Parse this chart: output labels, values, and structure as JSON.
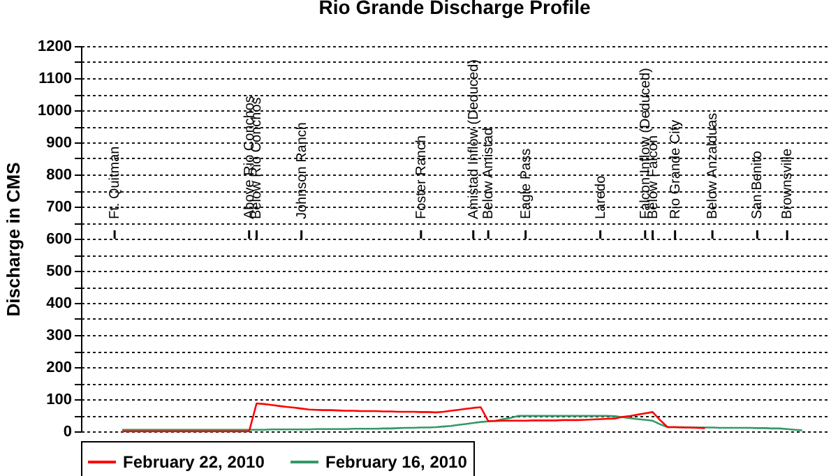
{
  "chart_data": {
    "type": "line",
    "title": "Rio Grande Discharge Profile",
    "ylabel": "Discharge in CMS",
    "categories": [
      null,
      null,
      null,
      null,
      "Ft. Quitman",
      null,
      null,
      null,
      null,
      null,
      null,
      null,
      null,
      null,
      null,
      null,
      null,
      null,
      null,
      null,
      null,
      null,
      "Above Rio Conchos",
      "Below Rio Conchos",
      null,
      null,
      null,
      null,
      null,
      "Johnson Ranch",
      null,
      null,
      null,
      null,
      null,
      null,
      null,
      null,
      null,
      null,
      null,
      null,
      null,
      null,
      null,
      "Foster Ranch",
      null,
      null,
      null,
      null,
      null,
      null,
      "Amistad Inflow (Deduced)",
      null,
      "Below Amistad",
      null,
      null,
      null,
      null,
      "Eagle Pass",
      null,
      null,
      null,
      null,
      null,
      null,
      null,
      null,
      null,
      "Laredo",
      null,
      null,
      null,
      null,
      null,
      "Falcon Inflow (Deduced)",
      "Below Falcon",
      null,
      null,
      "Rio Grande City",
      null,
      null,
      null,
      null,
      "Below Anzalduas",
      null,
      null,
      null,
      null,
      null,
      "San Benito",
      null,
      null,
      null,
      "Brownsville",
      null,
      null,
      null,
      null,
      null
    ],
    "ylim": [
      0,
      1200
    ],
    "yticks": [
      0,
      {
        "value": 50,
        "label": null
      },
      100,
      {
        "value": 150,
        "label": null
      },
      200,
      {
        "value": 250,
        "label": null
      },
      300,
      {
        "value": 350,
        "label": null
      },
      400,
      {
        "value": 450,
        "label": null
      },
      500,
      {
        "value": 550,
        "label": null
      },
      600,
      {
        "value": 650,
        "label": null
      },
      700,
      {
        "value": 750,
        "label": null
      },
      800,
      {
        "value": 850,
        "label": null
      },
      900,
      {
        "value": 950,
        "label": null
      },
      1000,
      {
        "value": 1050,
        "label": null
      },
      1100,
      {
        "value": 1150,
        "label": null
      },
      1200
    ],
    "grid": "y",
    "legend": "bottom",
    "marker": "none",
    "line_style": "solid",
    "series": [
      {
        "name": "February 22, 2010",
        "color": "#ff0000",
        "values": [
          null,
          null,
          null,
          null,
          null,
          0,
          0,
          0,
          0,
          0,
          0,
          0,
          0,
          0,
          0,
          0,
          0,
          0,
          0,
          0,
          0,
          0,
          0,
          87,
          85,
          82,
          79,
          76,
          74,
          71,
          68,
          67,
          66,
          66,
          65,
          64,
          64,
          63,
          63,
          63,
          62,
          62,
          61,
          61,
          61,
          60,
          60,
          59,
          61,
          64,
          67,
          70,
          73,
          75,
          32,
          32,
          33,
          33,
          33,
          33,
          34,
          34,
          34,
          34,
          35,
          35,
          35,
          36,
          37,
          38,
          39,
          40,
          45,
          48,
          52,
          56,
          60,
          35,
          13,
          13,
          12,
          12,
          11,
          10,
          null,
          null,
          null,
          null,
          null,
          null,
          null,
          null,
          null,
          null,
          null,
          null,
          null,
          null,
          null,
          null
        ]
      },
      {
        "name": "February 16, 2010",
        "color": "#339966",
        "values": [
          null,
          null,
          null,
          null,
          null,
          5,
          5,
          5,
          5,
          5,
          5,
          5,
          5,
          5,
          5,
          5,
          5,
          5,
          5,
          5,
          5,
          5,
          5,
          5,
          5,
          6,
          6,
          6,
          6,
          6,
          6,
          7,
          7,
          7,
          7,
          7,
          8,
          8,
          8,
          8,
          9,
          9,
          10,
          11,
          11,
          12,
          12,
          13,
          15,
          17,
          20,
          23,
          26,
          29,
          31,
          33,
          38,
          42,
          48,
          48,
          48,
          48,
          48,
          48,
          48,
          48,
          48,
          48,
          48,
          48,
          48,
          47,
          44,
          41,
          38,
          36,
          33,
          22,
          13,
          13,
          13,
          12,
          12,
          12,
          12,
          11,
          11,
          11,
          11,
          11,
          10,
          10,
          9,
          9,
          7,
          5,
          3,
          null,
          null,
          null
        ]
      }
    ]
  }
}
